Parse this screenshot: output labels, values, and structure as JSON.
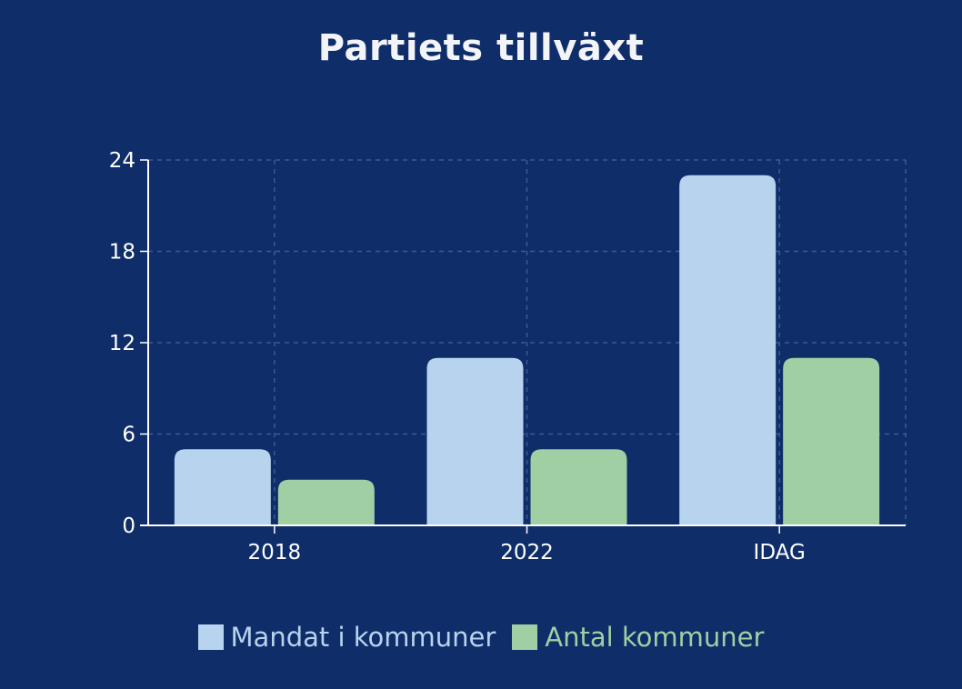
{
  "chart_data": {
    "type": "bar",
    "title": "Partiets tillväxt",
    "categories": [
      "2018",
      "2022",
      "IDAG"
    ],
    "series": [
      {
        "name": "Mandat i kommuner",
        "values": [
          5,
          11,
          23
        ],
        "color": "#b8d3ee"
      },
      {
        "name": "Antal kommuner",
        "values": [
          3,
          5,
          11
        ],
        "color": "#9fcfa2"
      }
    ],
    "yticks": [
      0,
      6,
      12,
      18,
      24
    ],
    "ylim": [
      0,
      24
    ],
    "xlabel": "",
    "ylabel": "",
    "grid": true,
    "legend_position": "bottom"
  },
  "colors": {
    "background": "#0f2d69",
    "grid": "#3d5a94",
    "axis": "#ffffff"
  }
}
